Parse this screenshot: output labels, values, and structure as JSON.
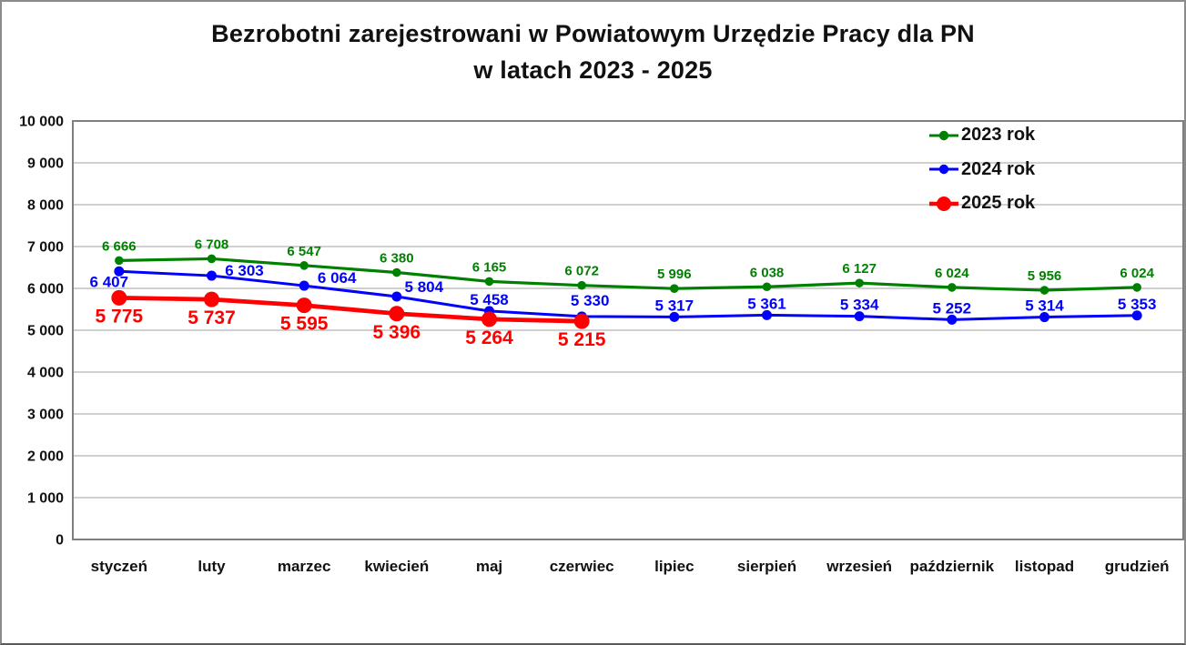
{
  "title": {
    "line1": "Bezrobotni zarejestrowani w Powiatowym Urzędzie Pracy dla PN",
    "line2": "w latach 2023 - 2025"
  },
  "chart_data": {
    "type": "line",
    "title": "Bezrobotni zarejestrowani w Powiatowym Urzędzie Pracy dla PN w latach 2023 - 2025",
    "categories": [
      "styczeń",
      "luty",
      "marzec",
      "kwiecień",
      "maj",
      "czerwiec",
      "lipiec",
      "sierpień",
      "wrzesień",
      "październik",
      "listopad",
      "grudzień"
    ],
    "series": [
      {
        "name": "2023 rok",
        "color": "#008000",
        "values": [
          6666,
          6708,
          6547,
          6380,
          6165,
          6072,
          5996,
          6038,
          6127,
          6024,
          5956,
          6024
        ]
      },
      {
        "name": "2024 rok",
        "color": "#0000ff",
        "values": [
          6407,
          6303,
          6064,
          5804,
          5458,
          5330,
          5317,
          5361,
          5334,
          5252,
          5314,
          5353
        ]
      },
      {
        "name": "2025 rok",
        "color": "#ff0000",
        "values": [
          5775,
          5737,
          5595,
          5396,
          5264,
          5215
        ]
      }
    ],
    "ylim": [
      0,
      10000
    ],
    "y_tick_step": 1000,
    "y_ticks": [
      "0",
      "1 000",
      "2 000",
      "3 000",
      "4 000",
      "5 000",
      "6 000",
      "7 000",
      "8 000",
      "9 000",
      "10 000"
    ],
    "grid": "horizontal",
    "legend_position": "top-right",
    "data_labels": "on",
    "gridline_color": "#c0c0c0",
    "frame_color": "#7f7f7f"
  }
}
